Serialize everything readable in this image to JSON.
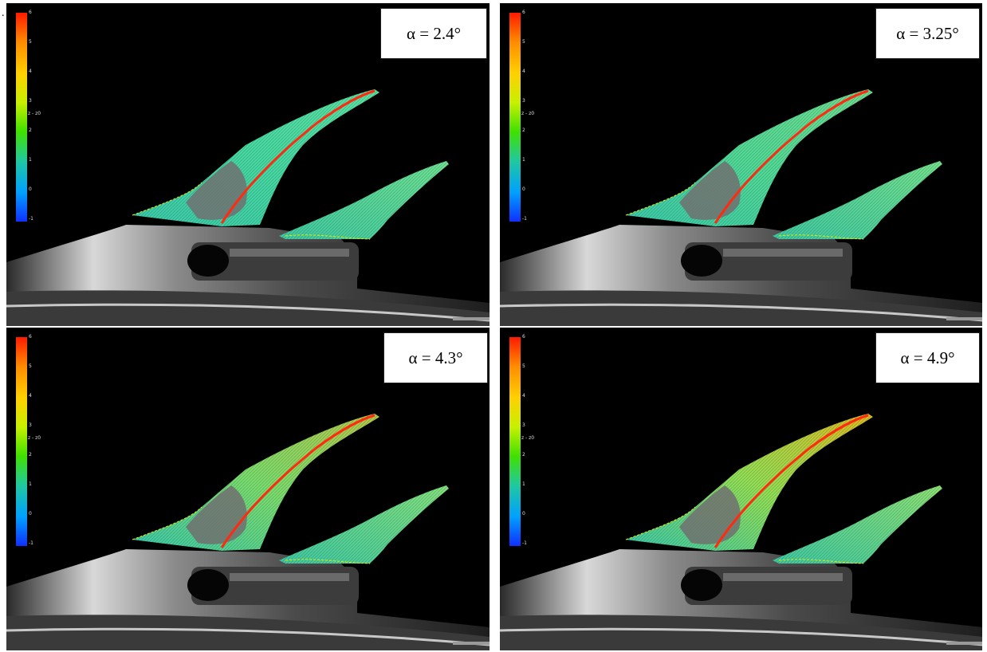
{
  "stray_mark": ".",
  "colorbar": {
    "title": "z - z0",
    "ticks": [
      "6",
      "5",
      "4",
      "3",
      "2",
      "1",
      "0",
      "-1"
    ],
    "colors": [
      "#ff1a00",
      "#ff8c00",
      "#ffd000",
      "#c8f000",
      "#40e000",
      "#20c8a0",
      "#00a0ff",
      "#1030ff"
    ]
  },
  "panels": [
    {
      "label": "α = 2.4°",
      "deflection_level": 0.0
    },
    {
      "label": "α = 3.25°",
      "deflection_level": 0.12
    },
    {
      "label": "α = 4.3°",
      "deflection_level": 0.55
    },
    {
      "label": "α = 4.9°",
      "deflection_level": 0.8
    }
  ],
  "colors": {
    "background": "#000000",
    "marker_line": "#ff2a10",
    "boundary": "#e8e800"
  }
}
